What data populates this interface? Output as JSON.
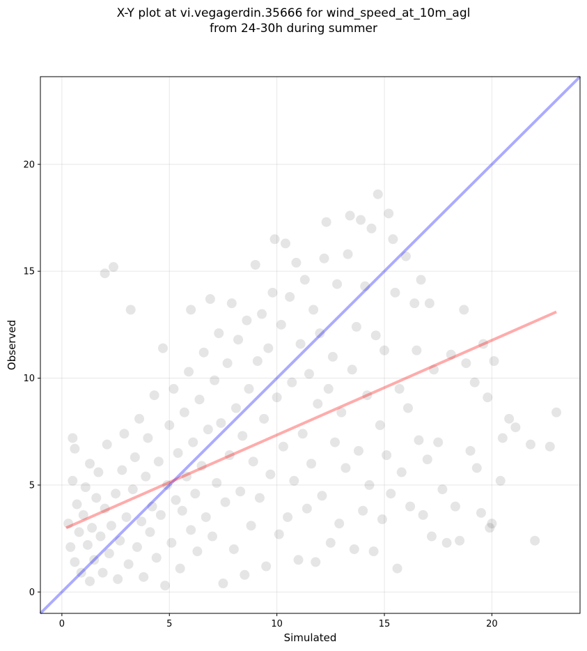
{
  "chart_data": {
    "type": "scatter",
    "title": "X-Y plot at vi.vegagerdin.35666 for wind_speed_at_10m_agl",
    "subtitle": "from 24-30h during summer",
    "xlabel": "Simulated",
    "ylabel": "Observed",
    "xlim": [
      -1,
      24.1
    ],
    "ylim": [
      -1,
      24.1
    ],
    "xticks": [
      0,
      5,
      10,
      15,
      20
    ],
    "yticks": [
      0,
      5,
      10,
      15,
      20
    ],
    "grid": true,
    "point_color": "#000000",
    "point_alpha": 0.1,
    "identity_line": {
      "x": [
        -1,
        24.1
      ],
      "y": [
        -1,
        24.1
      ],
      "color": "#0000ff"
    },
    "regression_line": {
      "x": [
        0.2,
        23
      ],
      "y": [
        3.0,
        13.1
      ],
      "color": "#ff0000"
    },
    "series": [
      {
        "points": [
          [
            0.3,
            3.2
          ],
          [
            0.4,
            2.1
          ],
          [
            0.5,
            5.2
          ],
          [
            0.5,
            7.2
          ],
          [
            0.6,
            1.4
          ],
          [
            0.7,
            4.1
          ],
          [
            0.6,
            6.7
          ],
          [
            0.8,
            2.8
          ],
          [
            0.9,
            0.9
          ],
          [
            1.0,
            3.6
          ],
          [
            1.1,
            4.9
          ],
          [
            1.2,
            2.2
          ],
          [
            1.3,
            0.5
          ],
          [
            1.3,
            6.0
          ],
          [
            1.4,
            3.0
          ],
          [
            1.5,
            1.5
          ],
          [
            1.6,
            4.4
          ],
          [
            1.7,
            5.6
          ],
          [
            1.8,
            2.6
          ],
          [
            1.9,
            0.9
          ],
          [
            2.0,
            3.9
          ],
          [
            2.0,
            14.9
          ],
          [
            2.1,
            6.9
          ],
          [
            2.2,
            1.8
          ],
          [
            2.3,
            3.1
          ],
          [
            2.4,
            15.2
          ],
          [
            2.5,
            4.6
          ],
          [
            2.6,
            0.6
          ],
          [
            2.7,
            2.4
          ],
          [
            2.8,
            5.7
          ],
          [
            2.9,
            7.4
          ],
          [
            3.0,
            3.5
          ],
          [
            3.1,
            1.3
          ],
          [
            3.2,
            13.2
          ],
          [
            3.3,
            4.8
          ],
          [
            3.4,
            6.3
          ],
          [
            3.5,
            2.1
          ],
          [
            3.6,
            8.1
          ],
          [
            3.7,
            3.3
          ],
          [
            3.8,
            0.7
          ],
          [
            3.9,
            5.4
          ],
          [
            4.0,
            7.2
          ],
          [
            4.1,
            2.8
          ],
          [
            4.2,
            4.0
          ],
          [
            4.3,
            9.2
          ],
          [
            4.4,
            1.6
          ],
          [
            4.5,
            6.1
          ],
          [
            4.6,
            3.6
          ],
          [
            4.7,
            11.4
          ],
          [
            4.8,
            0.3
          ],
          [
            4.9,
            5.0
          ],
          [
            5.0,
            7.8
          ],
          [
            5.1,
            2.3
          ],
          [
            5.2,
            9.5
          ],
          [
            5.3,
            4.3
          ],
          [
            5.4,
            6.5
          ],
          [
            5.5,
            1.1
          ],
          [
            5.6,
            3.8
          ],
          [
            5.7,
            8.4
          ],
          [
            5.8,
            5.4
          ],
          [
            5.9,
            10.3
          ],
          [
            6.0,
            2.9
          ],
          [
            6.0,
            13.2
          ],
          [
            6.1,
            7.0
          ],
          [
            6.2,
            4.6
          ],
          [
            6.3,
            1.9
          ],
          [
            6.4,
            9.0
          ],
          [
            6.5,
            5.9
          ],
          [
            6.6,
            11.2
          ],
          [
            6.7,
            3.5
          ],
          [
            6.8,
            7.6
          ],
          [
            6.9,
            13.7
          ],
          [
            7.0,
            2.6
          ],
          [
            7.1,
            9.9
          ],
          [
            7.2,
            5.1
          ],
          [
            7.3,
            12.1
          ],
          [
            7.4,
            7.9
          ],
          [
            7.5,
            0.4
          ],
          [
            7.6,
            4.2
          ],
          [
            7.7,
            10.7
          ],
          [
            7.8,
            6.4
          ],
          [
            7.9,
            13.5
          ],
          [
            8.0,
            2.0
          ],
          [
            8.1,
            8.6
          ],
          [
            8.2,
            11.8
          ],
          [
            8.3,
            4.7
          ],
          [
            8.4,
            7.3
          ],
          [
            8.5,
            0.8
          ],
          [
            8.6,
            12.7
          ],
          [
            8.7,
            9.5
          ],
          [
            8.8,
            3.1
          ],
          [
            8.9,
            6.1
          ],
          [
            9.0,
            15.3
          ],
          [
            9.1,
            10.8
          ],
          [
            9.2,
            4.4
          ],
          [
            9.3,
            13.0
          ],
          [
            9.4,
            8.1
          ],
          [
            9.5,
            1.2
          ],
          [
            9.6,
            11.4
          ],
          [
            9.7,
            5.5
          ],
          [
            9.8,
            14.0
          ],
          [
            9.9,
            16.5
          ],
          [
            10.0,
            9.1
          ],
          [
            10.1,
            2.7
          ],
          [
            10.2,
            12.5
          ],
          [
            10.3,
            6.8
          ],
          [
            10.4,
            16.3
          ],
          [
            10.5,
            3.5
          ],
          [
            10.6,
            13.8
          ],
          [
            10.7,
            9.8
          ],
          [
            10.8,
            5.2
          ],
          [
            10.9,
            15.4
          ],
          [
            11.0,
            1.5
          ],
          [
            11.1,
            11.6
          ],
          [
            11.2,
            7.4
          ],
          [
            11.3,
            14.6
          ],
          [
            11.4,
            3.9
          ],
          [
            11.5,
            10.2
          ],
          [
            11.6,
            6.0
          ],
          [
            11.7,
            13.2
          ],
          [
            11.8,
            1.4
          ],
          [
            11.9,
            8.8
          ],
          [
            12.0,
            12.1
          ],
          [
            12.1,
            4.5
          ],
          [
            12.2,
            15.6
          ],
          [
            12.3,
            17.3
          ],
          [
            12.4,
            9.5
          ],
          [
            12.5,
            2.3
          ],
          [
            12.6,
            11.0
          ],
          [
            12.7,
            7.0
          ],
          [
            12.8,
            14.4
          ],
          [
            12.9,
            3.2
          ],
          [
            13.0,
            8.4
          ],
          [
            13.2,
            5.8
          ],
          [
            13.3,
            15.8
          ],
          [
            13.4,
            17.6
          ],
          [
            13.5,
            10.4
          ],
          [
            13.6,
            2.0
          ],
          [
            13.7,
            12.4
          ],
          [
            13.8,
            6.6
          ],
          [
            13.9,
            17.4
          ],
          [
            14.0,
            3.8
          ],
          [
            14.1,
            14.3
          ],
          [
            14.2,
            9.2
          ],
          [
            14.3,
            5.0
          ],
          [
            14.4,
            17.0
          ],
          [
            14.5,
            1.9
          ],
          [
            14.6,
            12.0
          ],
          [
            14.7,
            18.6
          ],
          [
            14.8,
            7.8
          ],
          [
            14.9,
            3.4
          ],
          [
            15.0,
            11.3
          ],
          [
            15.1,
            6.4
          ],
          [
            15.2,
            17.7
          ],
          [
            15.3,
            4.6
          ],
          [
            15.4,
            16.5
          ],
          [
            15.5,
            14.0
          ],
          [
            15.6,
            1.1
          ],
          [
            15.7,
            9.5
          ],
          [
            15.8,
            5.6
          ],
          [
            16.0,
            15.7
          ],
          [
            16.1,
            8.6
          ],
          [
            16.2,
            4.0
          ],
          [
            16.4,
            13.5
          ],
          [
            16.5,
            11.3
          ],
          [
            16.6,
            7.1
          ],
          [
            16.7,
            14.6
          ],
          [
            16.8,
            3.6
          ],
          [
            17.0,
            6.2
          ],
          [
            17.1,
            13.5
          ],
          [
            17.2,
            2.6
          ],
          [
            17.3,
            10.4
          ],
          [
            17.5,
            7.0
          ],
          [
            17.7,
            4.8
          ],
          [
            17.9,
            2.3
          ],
          [
            18.1,
            11.1
          ],
          [
            18.3,
            4.0
          ],
          [
            18.5,
            2.4
          ],
          [
            18.7,
            13.2
          ],
          [
            18.8,
            10.7
          ],
          [
            19.0,
            6.6
          ],
          [
            19.2,
            9.8
          ],
          [
            19.3,
            5.8
          ],
          [
            19.5,
            3.7
          ],
          [
            19.6,
            11.6
          ],
          [
            19.8,
            9.1
          ],
          [
            19.9,
            3.0
          ],
          [
            20.0,
            3.2
          ],
          [
            20.1,
            10.8
          ],
          [
            20.4,
            5.2
          ],
          [
            20.5,
            7.2
          ],
          [
            20.8,
            8.1
          ],
          [
            21.1,
            7.7
          ],
          [
            21.8,
            6.9
          ],
          [
            22.0,
            2.4
          ],
          [
            22.7,
            6.8
          ],
          [
            23.0,
            8.4
          ]
        ]
      }
    ]
  }
}
